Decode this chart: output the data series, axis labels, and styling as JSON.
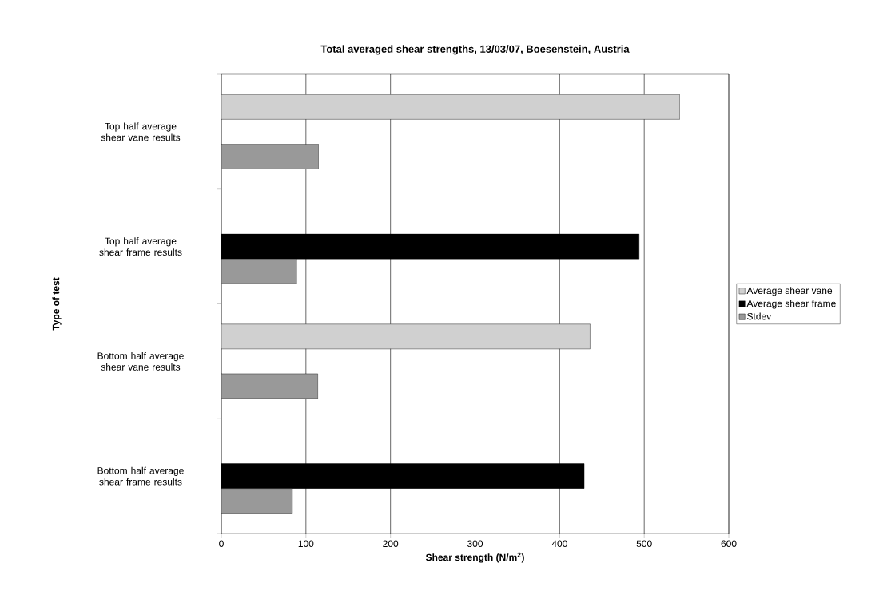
{
  "chart_data": {
    "type": "bar",
    "orientation": "horizontal",
    "title": "Total averaged shear strengths, 13/03/07, Boesenstein, Austria",
    "xlabel": "Shear strength (N/m$^{2}$)",
    "ylabel": "Type of test",
    "categories": [
      "Top half average shear vane results",
      "Top half average shear frame results",
      "Bottom half average shear vane results",
      "Bottom half average shear frame results"
    ],
    "series": [
      {
        "name": "Average shear vane",
        "color": "#d0d0d0",
        "values": [
          542,
          null,
          436,
          null
        ]
      },
      {
        "name": "Average shear frame",
        "color": "#000000",
        "values": [
          null,
          494,
          null,
          429
        ]
      },
      {
        "name": "Stdev",
        "color": "#999999",
        "values": [
          115,
          89,
          114,
          84
        ]
      }
    ],
    "xlim": [
      0,
      600
    ],
    "xticks": [
      0,
      100,
      200,
      300,
      400,
      500,
      600
    ],
    "grid": "x",
    "legend": "right"
  }
}
